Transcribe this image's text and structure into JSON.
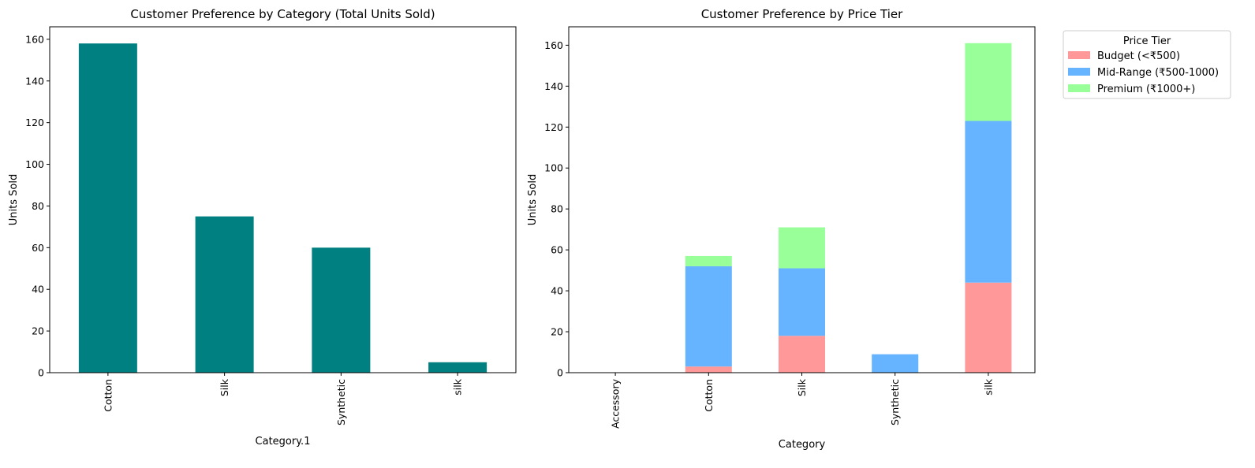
{
  "chart_data": [
    {
      "type": "bar",
      "title": "Customer Preference by Category (Total Units Sold)",
      "xlabel": "Category.1",
      "ylabel": "Units Sold",
      "categories": [
        "Cotton",
        "Silk",
        "Synthetic",
        "silk"
      ],
      "values": [
        158,
        75,
        60,
        5
      ],
      "ylim": [
        0,
        166
      ],
      "yticks": [
        0,
        20,
        40,
        60,
        80,
        100,
        120,
        140,
        160
      ],
      "color": "#008080",
      "grid": false
    },
    {
      "type": "bar",
      "stacked": true,
      "title": "Customer Preference by Price Tier",
      "xlabel": "Category",
      "ylabel": "Units Sold",
      "categories": [
        "Accessory",
        "Cotton",
        "Silk",
        "Synthetic",
        "silk"
      ],
      "series": [
        {
          "name": "Budget (<₹500)",
          "color": "#ff9999",
          "values": [
            0,
            3,
            18,
            0,
            44
          ]
        },
        {
          "name": "Mid-Range (₹500-1000)",
          "color": "#66b3ff",
          "values": [
            0,
            49,
            33,
            9,
            79
          ]
        },
        {
          "name": "Premium (₹1000+)",
          "color": "#99ff99",
          "values": [
            0,
            5,
            20,
            0,
            38
          ]
        }
      ],
      "ylim": [
        0,
        169
      ],
      "yticks": [
        0,
        20,
        40,
        60,
        80,
        100,
        120,
        140,
        160
      ],
      "legend_title": "Price Tier",
      "legend_position": "outside-upper-right",
      "grid": false
    }
  ]
}
